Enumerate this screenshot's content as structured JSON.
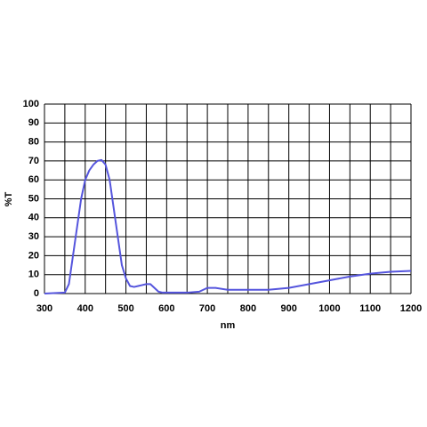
{
  "chart_data": {
    "type": "line",
    "x_label": "nm",
    "y_label": "%T",
    "xlim": [
      300,
      1200
    ],
    "ylim": [
      0,
      100
    ],
    "xticks": [
      300,
      400,
      500,
      600,
      700,
      800,
      900,
      1000,
      1100,
      1200
    ],
    "x_minor_ticks": [
      350,
      450,
      550,
      650,
      750,
      850,
      950,
      1050,
      1150
    ],
    "yticks": [
      0,
      10,
      20,
      30,
      40,
      50,
      60,
      70,
      80,
      90,
      100
    ],
    "grid": true,
    "series": [
      {
        "color": "#5555dd",
        "x": [
          300,
          350,
          360,
          370,
          380,
          390,
          400,
          410,
          420,
          430,
          440,
          450,
          460,
          470,
          480,
          490,
          500,
          510,
          520,
          530,
          540,
          550,
          560,
          570,
          580,
          590,
          600,
          650,
          680,
          700,
          720,
          750,
          800,
          850,
          900,
          950,
          1000,
          1050,
          1100,
          1150,
          1200
        ],
        "values": [
          0,
          0.5,
          5,
          20,
          35,
          50,
          60,
          65,
          68,
          70,
          70.5,
          68,
          60,
          45,
          30,
          15,
          8,
          4,
          3.5,
          4,
          4.5,
          5,
          5,
          3,
          1,
          0.5,
          0.5,
          0.5,
          1,
          3,
          3,
          2,
          2,
          2,
          3,
          5,
          7,
          9,
          10.5,
          11.5,
          12
        ]
      }
    ]
  }
}
